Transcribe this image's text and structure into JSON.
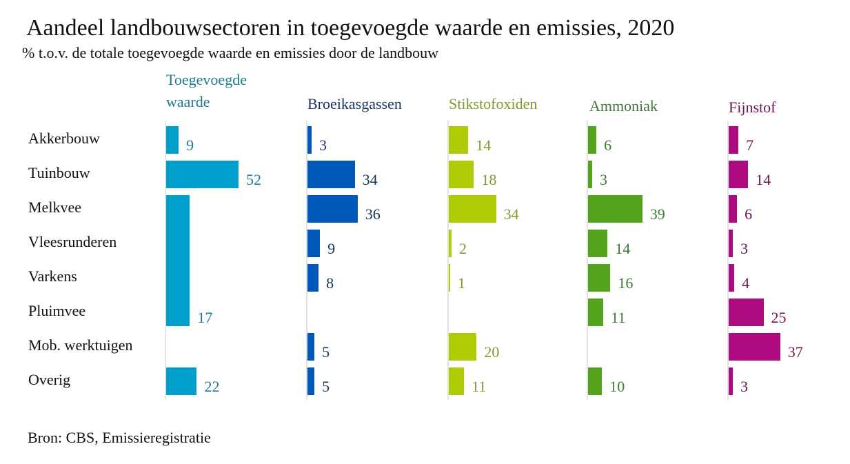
{
  "chart_data": {
    "type": "bar",
    "orientation": "horizontal",
    "title": "Aandeel landbouwsectoren in toegevoegde waarde en emissies, 2020",
    "subtitle": "% t.o.v. de totale toegevoegde waarde en emissies door de landbouw",
    "source": "Bron: CBS, Emissieregistratie",
    "categories": [
      "Akkerbouw",
      "Tuinbouw",
      "Melkvee",
      "Vleesrunderen",
      "Varkens",
      "Pluimvee",
      "Mob. werktuigen",
      "Overig"
    ],
    "unit": "%",
    "grid": false,
    "legend": "none (panel titles)",
    "panels": [
      {
        "name": "Toegevoegde waarde",
        "color": "#00a0cc",
        "label_color": "#1f7b94",
        "bars": [
          {
            "categories": [
              "Akkerbouw"
            ],
            "value": 9
          },
          {
            "categories": [
              "Tuinbouw"
            ],
            "value": 52
          },
          {
            "categories": [
              "Melkvee",
              "Vleesrunderen",
              "Varkens",
              "Pluimvee"
            ],
            "value": 17
          },
          {
            "categories": [
              "Overig"
            ],
            "value": 22
          }
        ]
      },
      {
        "name": "Broeikasgassen",
        "color": "#0058b8",
        "label_color": "#1b3560",
        "bars": [
          {
            "categories": [
              "Akkerbouw"
            ],
            "value": 3
          },
          {
            "categories": [
              "Tuinbouw"
            ],
            "value": 34
          },
          {
            "categories": [
              "Melkvee"
            ],
            "value": 36
          },
          {
            "categories": [
              "Vleesrunderen"
            ],
            "value": 9
          },
          {
            "categories": [
              "Varkens"
            ],
            "value": 8
          },
          {
            "categories": [
              "Mob. werktuigen"
            ],
            "value": 5
          },
          {
            "categories": [
              "Overig"
            ],
            "value": 5
          }
        ]
      },
      {
        "name": "Stikstofoxiden",
        "color": "#afcb05",
        "label_color": "#7f9a2a",
        "bars": [
          {
            "categories": [
              "Akkerbouw"
            ],
            "value": 14
          },
          {
            "categories": [
              "Tuinbouw"
            ],
            "value": 18
          },
          {
            "categories": [
              "Melkvee"
            ],
            "value": 34
          },
          {
            "categories": [
              "Vleesrunderen"
            ],
            "value": 2
          },
          {
            "categories": [
              "Varkens"
            ],
            "value": 1
          },
          {
            "categories": [
              "Mob. werktuigen"
            ],
            "value": 20
          },
          {
            "categories": [
              "Overig"
            ],
            "value": 11
          }
        ]
      },
      {
        "name": "Ammoniak",
        "color": "#53a31d",
        "label_color": "#3f7a36",
        "bars": [
          {
            "categories": [
              "Akkerbouw"
            ],
            "value": 6
          },
          {
            "categories": [
              "Tuinbouw"
            ],
            "value": 3
          },
          {
            "categories": [
              "Melkvee"
            ],
            "value": 39
          },
          {
            "categories": [
              "Vleesrunderen"
            ],
            "value": 14
          },
          {
            "categories": [
              "Varkens"
            ],
            "value": 16
          },
          {
            "categories": [
              "Pluimvee"
            ],
            "value": 11
          },
          {
            "categories": [
              "Overig"
            ],
            "value": 10
          }
        ]
      },
      {
        "name": "Fijnstof",
        "color": "#af0b80",
        "label_color": "#6b1452",
        "bars": [
          {
            "categories": [
              "Akkerbouw"
            ],
            "value": 7
          },
          {
            "categories": [
              "Tuinbouw"
            ],
            "value": 14
          },
          {
            "categories": [
              "Melkvee"
            ],
            "value": 6
          },
          {
            "categories": [
              "Vleesrunderen"
            ],
            "value": 3
          },
          {
            "categories": [
              "Varkens"
            ],
            "value": 4
          },
          {
            "categories": [
              "Pluimvee"
            ],
            "value": 25
          },
          {
            "categories": [
              "Mob. werktuigen"
            ],
            "value": 37
          },
          {
            "categories": [
              "Overig"
            ],
            "value": 3
          }
        ]
      }
    ]
  }
}
